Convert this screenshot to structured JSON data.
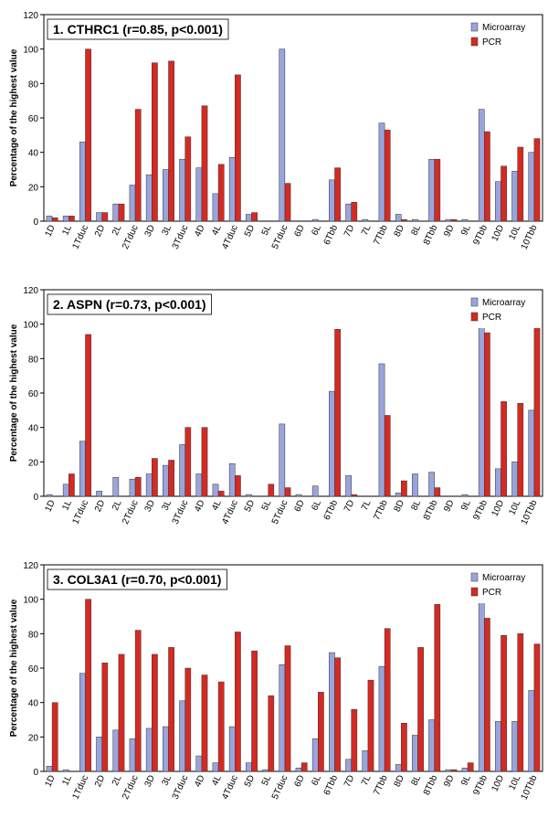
{
  "chart_data": [
    {
      "type": "bar",
      "title": "1. CTHRC1 (r=0.85, p<0.001)",
      "y_label": "Percentage of the highest value",
      "categories": [
        "1D",
        "1L",
        "1Tduc",
        "2D",
        "2L",
        "2Tduc",
        "3D",
        "3L",
        "3Tduc",
        "4D",
        "4L",
        "4Tduc",
        "5D",
        "5L",
        "5Tduc",
        "6D",
        "6L",
        "6Tbb",
        "7D",
        "7L",
        "7Tbb",
        "8D",
        "8L",
        "8Tbb",
        "9D",
        "9L",
        "9Tbb",
        "10D",
        "10L",
        "10Tbb"
      ],
      "series": [
        {
          "name": "Microarray",
          "color": "#9aa4dc",
          "values": [
            3,
            3,
            46,
            5,
            10,
            21,
            27,
            30,
            36,
            31,
            16,
            37,
            4,
            0,
            100,
            0,
            1,
            24,
            10,
            1,
            57,
            4,
            1,
            36,
            1,
            1,
            65,
            23,
            29,
            40
          ]
        },
        {
          "name": "PCR",
          "color": "#d42a22",
          "values": [
            2,
            3,
            100,
            5,
            10,
            65,
            92,
            93,
            49,
            67,
            33,
            85,
            5,
            0,
            22,
            0,
            0,
            31,
            11,
            0,
            53,
            1,
            0,
            36,
            1,
            0,
            52,
            32,
            43,
            48
          ]
        }
      ],
      "ylim": [
        0,
        120
      ],
      "yticks": [
        0,
        20,
        40,
        60,
        80,
        100,
        120
      ],
      "legend": "top-right"
    },
    {
      "type": "bar",
      "title": "2. ASPN (r=0.73, p<0.001)",
      "y_label": "Percentage of the highest value",
      "categories": [
        "1D",
        "1L",
        "1Tduc",
        "2D",
        "2L",
        "2Tduc",
        "3D",
        "3L",
        "3Tduc",
        "4D",
        "4L",
        "4Tduc",
        "5D",
        "5L",
        "5Tduc",
        "6D",
        "6L",
        "6Tbb",
        "7D",
        "7L",
        "7Tbb",
        "8D",
        "8L",
        "8Tbb",
        "9D",
        "9L",
        "9Tbb",
        "10D",
        "10L",
        "10Tbb"
      ],
      "series": [
        {
          "name": "Microarray",
          "color": "#9aa4dc",
          "values": [
            1,
            7,
            32,
            3,
            11,
            10,
            13,
            18,
            30,
            13,
            7,
            19,
            1,
            0,
            42,
            1,
            6,
            61,
            12,
            0,
            77,
            2,
            13,
            14,
            0,
            1,
            100,
            16,
            20,
            50
          ]
        },
        {
          "name": "PCR",
          "color": "#d42a22",
          "values": [
            0,
            13,
            94,
            0,
            0,
            11,
            22,
            21,
            40,
            40,
            3,
            12,
            0,
            7,
            5,
            0,
            0,
            97,
            1,
            0,
            47,
            9,
            0,
            5,
            0,
            0,
            95,
            55,
            54,
            100
          ]
        }
      ],
      "ylim": [
        0,
        120
      ],
      "yticks": [
        0,
        20,
        40,
        60,
        80,
        100,
        120
      ],
      "legend": "top-right"
    },
    {
      "type": "bar",
      "title": "3. COL3A1 (r=0.70, p<0.001)",
      "y_label": "Percentage of the highest value",
      "categories": [
        "1D",
        "1L",
        "1Tduc",
        "2D",
        "2L",
        "2Tduc",
        "3D",
        "3L",
        "3Tduc",
        "4D",
        "4L",
        "4Tduc",
        "5D",
        "5L",
        "5Tduc",
        "6D",
        "6L",
        "6Tbb",
        "7D",
        "7L",
        "7Tbb",
        "8D",
        "8L",
        "8Tbb",
        "9D",
        "9L",
        "9Tbb",
        "10D",
        "10L",
        "10Tbb"
      ],
      "series": [
        {
          "name": "Microarray",
          "color": "#9aa4dc",
          "values": [
            3,
            1,
            57,
            20,
            24,
            19,
            25,
            26,
            41,
            9,
            5,
            26,
            5,
            1,
            62,
            2,
            19,
            69,
            7,
            12,
            61,
            4,
            21,
            30,
            1,
            2,
            100,
            29,
            29,
            47
          ]
        },
        {
          "name": "PCR",
          "color": "#d42a22",
          "values": [
            40,
            0,
            100,
            63,
            68,
            82,
            68,
            72,
            60,
            56,
            52,
            81,
            70,
            44,
            73,
            5,
            46,
            66,
            36,
            53,
            83,
            28,
            72,
            97,
            1,
            5,
            89,
            79,
            80,
            74
          ]
        }
      ],
      "ylim": [
        0,
        120
      ],
      "yticks": [
        0,
        20,
        40,
        60,
        80,
        100,
        120
      ],
      "legend": "top-right"
    }
  ]
}
